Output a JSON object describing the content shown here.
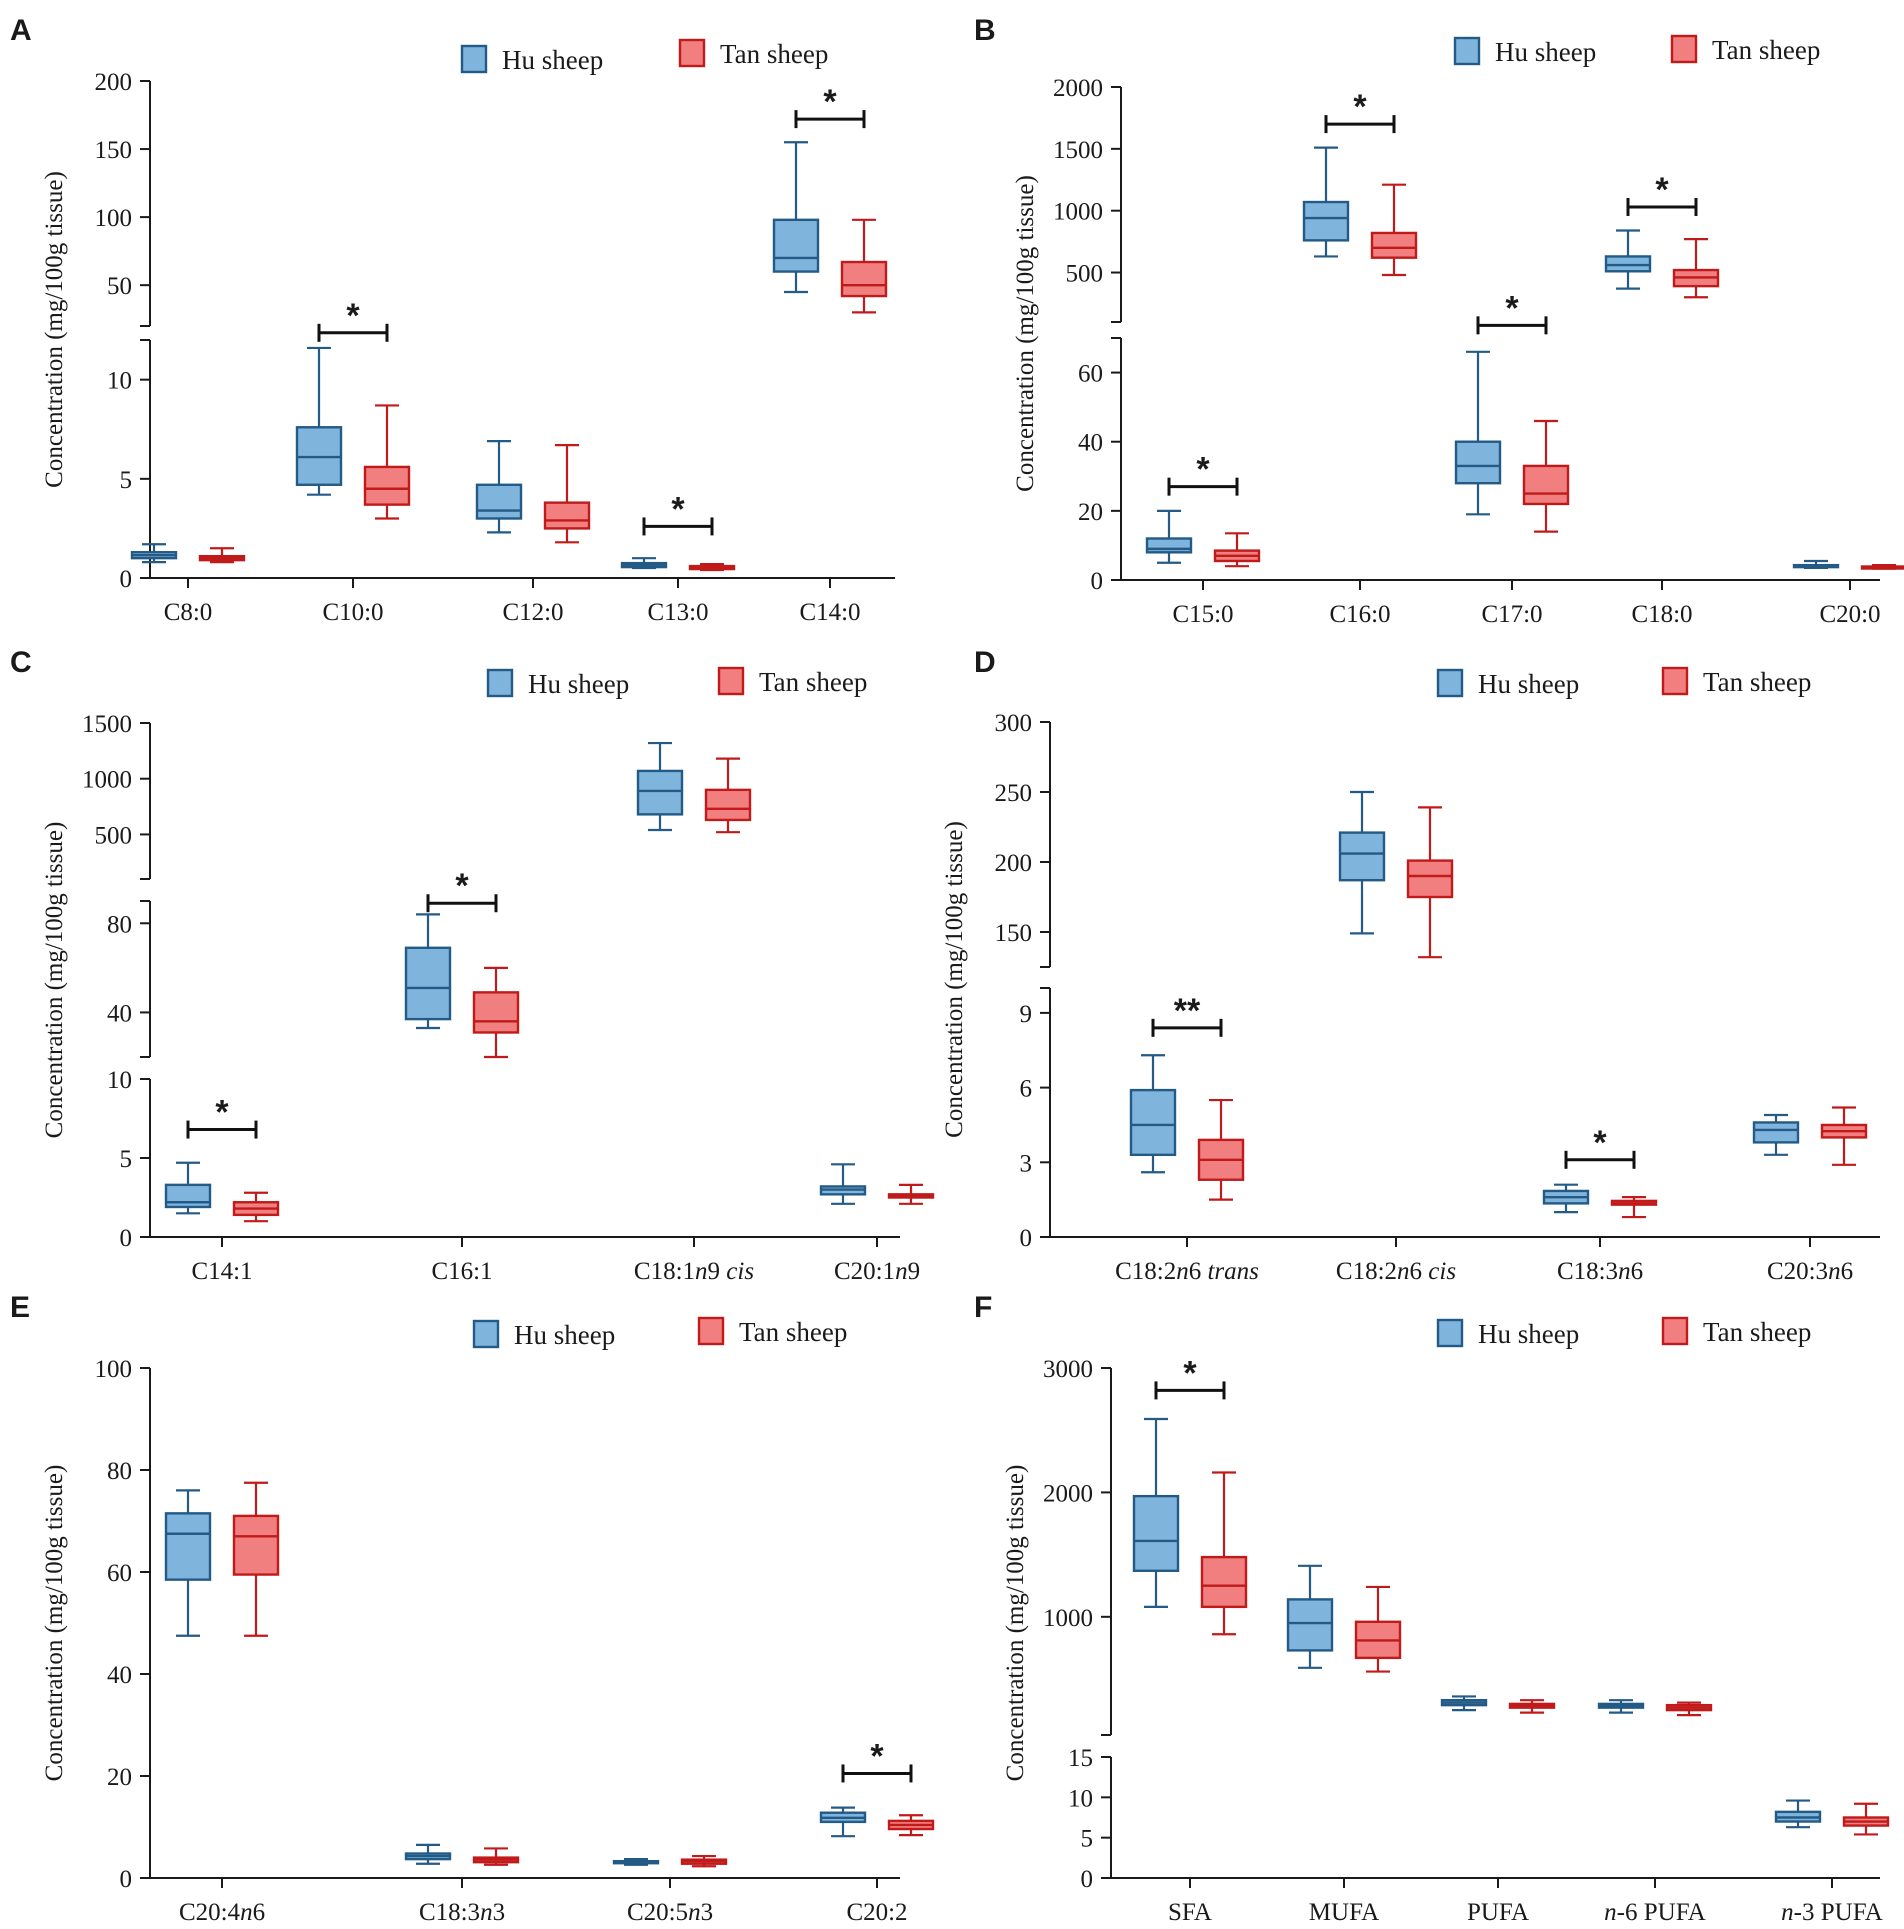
{
  "legend": {
    "series_a": "Hu sheep",
    "series_b": "Tan sheep"
  },
  "colors": {
    "hu_fill": "#7fb4dd",
    "hu_stroke": "#235a86",
    "tan_fill": "#f27f7f",
    "tan_stroke": "#c01a1a",
    "axis": "#1a1a1a"
  },
  "y_axis_label": "Concentration (mg/100g tissue)",
  "chart_data": [
    {
      "panel": "A",
      "type": "boxplot",
      "ylabel": "Concentration (mg/100g tissue)",
      "categories": [
        {
          "label": "C8:0"
        },
        {
          "label": "C10:0"
        },
        {
          "label": "C12:0"
        },
        {
          "label": "C13:0"
        },
        {
          "label": "C14:0"
        }
      ],
      "segments": [
        {
          "range": [
            0,
            12
          ],
          "ticks": [
            0,
            5,
            10
          ]
        },
        {
          "range": [
            20,
            200
          ],
          "ticks": [
            50,
            100,
            150,
            200
          ]
        }
      ],
      "series": [
        {
          "name": "Hu sheep",
          "boxes": [
            {
              "min": 0.8,
              "q1": 1.0,
              "med": 1.15,
              "q3": 1.3,
              "max": 1.7
            },
            {
              "min": 4.2,
              "q1": 4.7,
              "med": 6.1,
              "q3": 7.6,
              "max": 11.6
            },
            {
              "min": 2.3,
              "q1": 3.0,
              "med": 3.4,
              "q3": 4.7,
              "max": 6.9
            },
            {
              "min": 0.5,
              "q1": 0.55,
              "med": 0.65,
              "q3": 0.75,
              "max": 1.0
            },
            {
              "min": 45,
              "q1": 60,
              "med": 70,
              "q3": 98,
              "max": 155
            }
          ]
        },
        {
          "name": "Tan sheep",
          "boxes": [
            {
              "min": 0.8,
              "q1": 0.9,
              "med": 1.0,
              "q3": 1.1,
              "max": 1.5
            },
            {
              "min": 3.0,
              "q1": 3.7,
              "med": 4.5,
              "q3": 5.6,
              "max": 8.7
            },
            {
              "min": 1.8,
              "q1": 2.5,
              "med": 2.9,
              "q3": 3.8,
              "max": 6.7
            },
            {
              "min": 0.4,
              "q1": 0.45,
              "med": 0.55,
              "q3": 0.6,
              "max": 0.7
            },
            {
              "min": 30,
              "q1": 42,
              "med": 50,
              "q3": 67,
              "max": 98
            }
          ]
        }
      ],
      "significance": [
        {
          "category": 1,
          "label": "*",
          "y": 15
        },
        {
          "category": 3,
          "label": "*",
          "y": 2.6
        },
        {
          "category": 4,
          "label": "*",
          "y": 172
        }
      ]
    },
    {
      "panel": "B",
      "type": "boxplot",
      "ylabel": "Concentration (mg/100g tissue)",
      "categories": [
        {
          "label": "C15:0"
        },
        {
          "label": "C16:0"
        },
        {
          "label": "C17:0"
        },
        {
          "label": "C18:0"
        },
        {
          "label": "C20:0"
        }
      ],
      "segments": [
        {
          "range": [
            0,
            70
          ],
          "ticks": [
            0,
            20,
            40,
            60
          ]
        },
        {
          "range": [
            100,
            2000
          ],
          "ticks": [
            500,
            1000,
            1500,
            2000
          ]
        }
      ],
      "series": [
        {
          "name": "Hu sheep",
          "boxes": [
            {
              "min": 5,
              "q1": 8,
              "med": 9,
              "q3": 12,
              "max": 20
            },
            {
              "min": 630,
              "q1": 760,
              "med": 940,
              "q3": 1070,
              "max": 1510
            },
            {
              "min": 19,
              "q1": 28,
              "med": 33,
              "q3": 40,
              "max": 66
            },
            {
              "min": 370,
              "q1": 510,
              "med": 560,
              "q3": 630,
              "max": 840
            },
            {
              "min": 3.5,
              "q1": 3.8,
              "med": 4.0,
              "q3": 4.3,
              "max": 5.5
            }
          ]
        },
        {
          "name": "Tan sheep",
          "boxes": [
            {
              "min": 4,
              "q1": 5.5,
              "med": 7,
              "q3": 8.5,
              "max": 13.5
            },
            {
              "min": 480,
              "q1": 620,
              "med": 700,
              "q3": 820,
              "max": 1210
            },
            {
              "min": 14,
              "q1": 22,
              "med": 25,
              "q3": 33,
              "max": 46
            },
            {
              "min": 300,
              "q1": 390,
              "med": 460,
              "q3": 520,
              "max": 770
            },
            {
              "min": 3.3,
              "q1": 3.5,
              "med": 3.7,
              "q3": 3.9,
              "max": 4.3
            }
          ]
        }
      ],
      "significance": [
        {
          "category": 0,
          "label": "*",
          "y": 27
        },
        {
          "category": 1,
          "label": "*",
          "y": 1700
        },
        {
          "category": 2,
          "label": "*",
          "y": 73
        },
        {
          "category": 3,
          "label": "*",
          "y": 1030
        }
      ]
    },
    {
      "panel": "C",
      "type": "boxplot",
      "ylabel": "Concentration (mg/100g tissue)",
      "categories": [
        {
          "label": "C14:1",
          "parts": [
            {
              "t": "C14:1"
            }
          ]
        },
        {
          "label": "C16:1",
          "parts": [
            {
              "t": "C16:1"
            }
          ]
        },
        {
          "label": "C18:1n9 cis",
          "parts": [
            {
              "t": "C18:1"
            },
            {
              "t": "n",
              "i": true
            },
            {
              "t": "9 "
            },
            {
              "t": "cis",
              "i": true
            }
          ]
        },
        {
          "label": "C20:1n9",
          "parts": [
            {
              "t": "C20:1"
            },
            {
              "t": "n",
              "i": true
            },
            {
              "t": "9"
            }
          ]
        }
      ],
      "segments": [
        {
          "range": [
            0,
            10
          ],
          "ticks": [
            0,
            5,
            10
          ]
        },
        {
          "range": [
            20,
            90
          ],
          "ticks": [
            40,
            80
          ]
        },
        {
          "range": [
            100,
            1500
          ],
          "ticks": [
            500,
            1000,
            1500
          ]
        }
      ],
      "series": [
        {
          "name": "Hu sheep",
          "boxes": [
            {
              "min": 1.5,
              "q1": 1.9,
              "med": 2.2,
              "q3": 3.3,
              "max": 4.7
            },
            {
              "min": 33,
              "q1": 37,
              "med": 51,
              "q3": 69,
              "max": 84
            },
            {
              "min": 540,
              "q1": 680,
              "med": 890,
              "q3": 1070,
              "max": 1320
            },
            {
              "min": 2.1,
              "q1": 2.7,
              "med": 3.0,
              "q3": 3.2,
              "max": 4.6
            }
          ]
        },
        {
          "name": "Tan sheep",
          "boxes": [
            {
              "min": 1.0,
              "q1": 1.4,
              "med": 1.8,
              "q3": 2.2,
              "max": 2.8
            },
            {
              "min": 20,
              "q1": 31,
              "med": 36,
              "q3": 49,
              "max": 60
            },
            {
              "min": 520,
              "q1": 630,
              "med": 730,
              "q3": 900,
              "max": 1180
            },
            {
              "min": 2.1,
              "q1": 2.5,
              "med": 2.6,
              "q3": 2.7,
              "max": 3.3
            }
          ]
        }
      ],
      "significance": [
        {
          "category": 0,
          "label": "*",
          "y": 6.8
        },
        {
          "category": 1,
          "label": "*",
          "y": 89
        }
      ]
    },
    {
      "panel": "D",
      "type": "boxplot",
      "ylabel": "Concentration (mg/100g tissue)",
      "categories": [
        {
          "label": "C18:2n6 trans",
          "parts": [
            {
              "t": "C18:2"
            },
            {
              "t": "n",
              "i": true
            },
            {
              "t": "6 "
            },
            {
              "t": "trans",
              "i": true
            }
          ]
        },
        {
          "label": "C18:2n6 cis",
          "parts": [
            {
              "t": "C18:2"
            },
            {
              "t": "n",
              "i": true
            },
            {
              "t": "6 "
            },
            {
              "t": "cis",
              "i": true
            }
          ]
        },
        {
          "label": "C18:3n6",
          "parts": [
            {
              "t": "C18:3"
            },
            {
              "t": "n",
              "i": true
            },
            {
              "t": "6"
            }
          ]
        },
        {
          "label": "C20:3n6",
          "parts": [
            {
              "t": "C20:3"
            },
            {
              "t": "n",
              "i": true
            },
            {
              "t": "6"
            }
          ]
        }
      ],
      "segments": [
        {
          "range": [
            0,
            10
          ],
          "ticks": [
            0,
            3,
            6,
            9
          ]
        },
        {
          "range": [
            125,
            300
          ],
          "ticks": [
            150,
            200,
            250,
            300
          ]
        }
      ],
      "series": [
        {
          "name": "Hu sheep",
          "boxes": [
            {
              "min": 2.6,
              "q1": 3.3,
              "med": 4.5,
              "q3": 5.9,
              "max": 7.3
            },
            {
              "min": 149,
              "q1": 187,
              "med": 206,
              "q3": 221,
              "max": 250
            },
            {
              "min": 1.0,
              "q1": 1.35,
              "med": 1.6,
              "q3": 1.85,
              "max": 2.1
            },
            {
              "min": 3.3,
              "q1": 3.8,
              "med": 4.3,
              "q3": 4.6,
              "max": 4.9
            }
          ]
        },
        {
          "name": "Tan sheep",
          "boxes": [
            {
              "min": 1.5,
              "q1": 2.3,
              "med": 3.1,
              "q3": 3.9,
              "max": 5.5
            },
            {
              "min": 132,
              "q1": 175,
              "med": 190,
              "q3": 201,
              "max": 239
            },
            {
              "min": 0.8,
              "q1": 1.3,
              "med": 1.35,
              "q3": 1.45,
              "max": 1.6
            },
            {
              "min": 2.9,
              "q1": 4.0,
              "med": 4.25,
              "q3": 4.5,
              "max": 5.2
            }
          ]
        }
      ],
      "significance": [
        {
          "category": 0,
          "label": "**",
          "y": 8.4
        },
        {
          "category": 2,
          "label": "*",
          "y": 3.1
        }
      ]
    },
    {
      "panel": "E",
      "type": "boxplot",
      "ylabel": "Concentration (mg/100g tissue)",
      "categories": [
        {
          "label": "C20:4n6",
          "parts": [
            {
              "t": "C20:4"
            },
            {
              "t": "n",
              "i": true
            },
            {
              "t": "6"
            }
          ]
        },
        {
          "label": "C18:3n3",
          "parts": [
            {
              "t": "C18:3"
            },
            {
              "t": "n",
              "i": true
            },
            {
              "t": "3"
            }
          ]
        },
        {
          "label": "C20:5n3",
          "parts": [
            {
              "t": "C20:5"
            },
            {
              "t": "n",
              "i": true
            },
            {
              "t": "3"
            }
          ]
        },
        {
          "label": "C20:2",
          "parts": [
            {
              "t": "C20:2"
            }
          ]
        }
      ],
      "segments": [
        {
          "range": [
            0,
            100
          ],
          "ticks": [
            0,
            20,
            40,
            60,
            80,
            100
          ]
        }
      ],
      "series": [
        {
          "name": "Hu sheep",
          "boxes": [
            {
              "min": 47.5,
              "q1": 58.5,
              "med": 67.5,
              "q3": 71.5,
              "max": 76
            },
            {
              "min": 2.8,
              "q1": 3.7,
              "med": 4.3,
              "q3": 4.8,
              "max": 6.5
            },
            {
              "min": 2.6,
              "q1": 2.9,
              "med": 3.1,
              "q3": 3.3,
              "max": 3.7
            },
            {
              "min": 8.2,
              "q1": 11.0,
              "med": 11.8,
              "q3": 12.8,
              "max": 13.8
            }
          ]
        },
        {
          "name": "Tan sheep",
          "boxes": [
            {
              "min": 47.5,
              "q1": 59.5,
              "med": 67,
              "q3": 71,
              "max": 77.5
            },
            {
              "min": 2.6,
              "q1": 3.1,
              "med": 3.6,
              "q3": 4.0,
              "max": 5.8
            },
            {
              "min": 2.3,
              "q1": 2.8,
              "med": 3.3,
              "q3": 3.6,
              "max": 4.3
            },
            {
              "min": 8.4,
              "q1": 9.6,
              "med": 10.4,
              "q3": 11.2,
              "max": 12.3
            }
          ]
        }
      ],
      "significance": [
        {
          "category": 3,
          "label": "*",
          "y": 20.5
        }
      ]
    },
    {
      "panel": "F",
      "type": "boxplot",
      "ylabel": "Concentration (mg/100g tissue)",
      "categories": [
        {
          "label": "SFA",
          "parts": [
            {
              "t": "SFA"
            }
          ]
        },
        {
          "label": "MUFA",
          "parts": [
            {
              "t": "MUFA"
            }
          ]
        },
        {
          "label": "PUFA",
          "parts": [
            {
              "t": "PUFA"
            }
          ]
        },
        {
          "label": "n-6 PUFA",
          "parts": [
            {
              "t": "n",
              "i": true
            },
            {
              "t": "-6 PUFA"
            }
          ]
        },
        {
          "label": "n-3 PUFA",
          "parts": [
            {
              "t": "n",
              "i": true
            },
            {
              "t": "-3 PUFA"
            }
          ]
        }
      ],
      "segments": [
        {
          "range": [
            0,
            15
          ],
          "ticks": [
            0,
            5,
            10,
            15
          ]
        },
        {
          "range": [
            50,
            3000
          ],
          "ticks": [
            1000,
            2000,
            3000
          ]
        }
      ],
      "series": [
        {
          "name": "Hu sheep",
          "boxes": [
            {
              "min": 1080,
              "q1": 1370,
              "med": 1610,
              "q3": 1970,
              "max": 2590
            },
            {
              "min": 590,
              "q1": 730,
              "med": 950,
              "q3": 1140,
              "max": 1410
            },
            {
              "min": 250,
              "q1": 290,
              "med": 310,
              "q3": 330,
              "max": 360
            },
            {
              "min": 230,
              "q1": 270,
              "med": 285,
              "q3": 300,
              "max": 330
            },
            {
              "min": 6.3,
              "q1": 7.0,
              "med": 7.5,
              "q3": 8.2,
              "max": 9.6
            }
          ]
        },
        {
          "name": "Tan sheep",
          "boxes": [
            {
              "min": 860,
              "q1": 1080,
              "med": 1250,
              "q3": 1480,
              "max": 2160
            },
            {
              "min": 560,
              "q1": 670,
              "med": 810,
              "q3": 960,
              "max": 1240
            },
            {
              "min": 230,
              "q1": 270,
              "med": 285,
              "q3": 300,
              "max": 330
            },
            {
              "min": 210,
              "q1": 250,
              "med": 270,
              "q3": 290,
              "max": 310
            },
            {
              "min": 5.4,
              "q1": 6.5,
              "med": 7.0,
              "q3": 7.5,
              "max": 9.2
            }
          ]
        }
      ],
      "significance": [
        {
          "category": 0,
          "label": "*",
          "y": 2820
        }
      ]
    }
  ]
}
